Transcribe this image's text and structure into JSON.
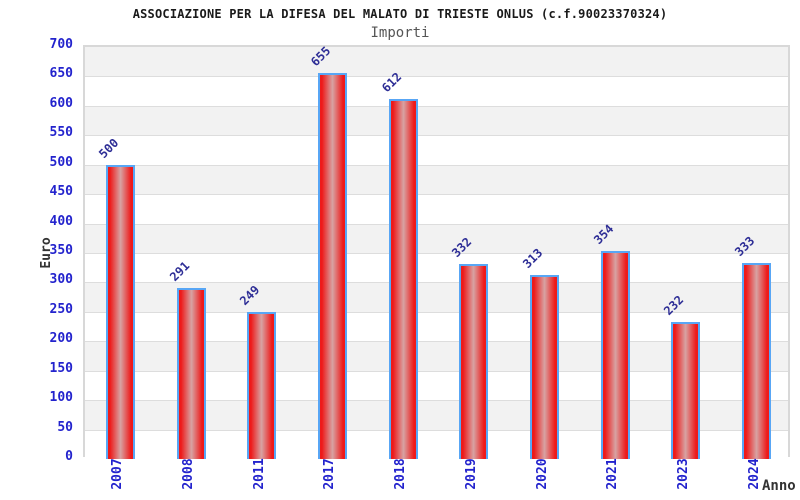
{
  "chart_data": {
    "type": "bar",
    "title": "ASSOCIAZIONE PER LA DIFESA DEL MALATO DI TRIESTE ONLUS (c.f.90023370324)",
    "subtitle": "Importi",
    "xlabel": "Anno",
    "ylabel": "Euro",
    "categories": [
      "2007",
      "2008",
      "2011",
      "2017",
      "2018",
      "2019",
      "2020",
      "2021",
      "2023",
      "2024"
    ],
    "values": [
      500,
      291,
      249,
      655,
      612,
      332,
      313,
      354,
      232,
      333
    ],
    "ylim": [
      0,
      700
    ],
    "ytick_step": 50,
    "grid": true,
    "legend": false,
    "bands_alternating": true,
    "colors": {
      "bar_red": "#ee1a1a",
      "bar_mid": "#d7a3a3",
      "bar_border": "#58a6f5",
      "tick_color": "#2323cd",
      "value_label_color": "#2e2e96",
      "band": "#f2f2f2",
      "grid_line": "#dddddd",
      "plot_border": "#d8d8d8",
      "title_color": "#1a1a1a",
      "subtitle_color": "#555555",
      "axis_label_color": "#333333"
    }
  }
}
